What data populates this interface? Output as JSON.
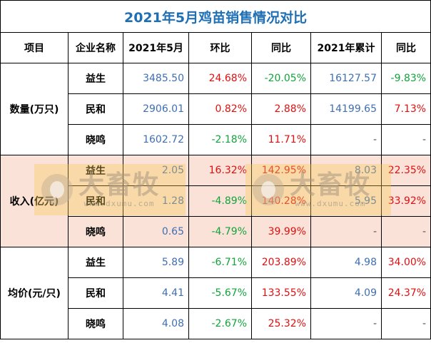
{
  "title": "2021年5月鸡苗销售情况对比",
  "headers": [
    "项目",
    "企业名称",
    "2021年5月",
    "环比",
    "同比",
    "2021年累计",
    "同比"
  ],
  "groups": [
    {
      "label": "数量(万只)",
      "rows": [
        {
          "company": "益生",
          "may": "3485.50",
          "mom": "24.68%",
          "yoy": "-20.05%",
          "ytd": "16127.57",
          "ytd_yoy": "-9.83%"
        },
        {
          "company": "民和",
          "may": "2906.01",
          "mom": "0.82%",
          "yoy": "2.88%",
          "ytd": "14199.65",
          "ytd_yoy": "7.13%"
        },
        {
          "company": "晓鸣",
          "may": "1602.72",
          "mom": "-2.18%",
          "yoy": "11.71%",
          "ytd": "-",
          "ytd_yoy": "-"
        }
      ]
    },
    {
      "label": "收入(亿元)",
      "rows": [
        {
          "company": "益生",
          "may": "2.05",
          "mom": "16.32%",
          "yoy": "142.95%",
          "ytd": "8.03",
          "ytd_yoy": "22.35%"
        },
        {
          "company": "民和",
          "may": "1.28",
          "mom": "-4.89%",
          "yoy": "140.28%",
          "ytd": "5.95",
          "ytd_yoy": "33.92%"
        },
        {
          "company": "晓鸣",
          "may": "0.65",
          "mom": "-4.79%",
          "yoy": "39.99%",
          "ytd": "-",
          "ytd_yoy": "-"
        }
      ]
    },
    {
      "label": "均价(元/只)",
      "rows": [
        {
          "company": "益生",
          "may": "5.89",
          "mom": "-6.71%",
          "yoy": "203.89%",
          "ytd": "4.98",
          "ytd_yoy": "34.00%"
        },
        {
          "company": "民和",
          "may": "4.41",
          "mom": "-5.67%",
          "yoy": "133.55%",
          "ytd": "4.09",
          "ytd_yoy": "24.37%"
        },
        {
          "company": "晓鸣",
          "may": "4.08",
          "mom": "-2.67%",
          "yoy": "25.32%",
          "ytd": "-",
          "ytd_yoy": "-"
        }
      ]
    }
  ],
  "watermark": {
    "brand": "大畜牧",
    "url": "www.dxumu.com"
  },
  "colors": {
    "title": "#1f6fb5",
    "value": "#3e6fb4",
    "positive": "#e01010",
    "negative": "#12a43b",
    "highlight_bg": "#fbe2d8"
  }
}
